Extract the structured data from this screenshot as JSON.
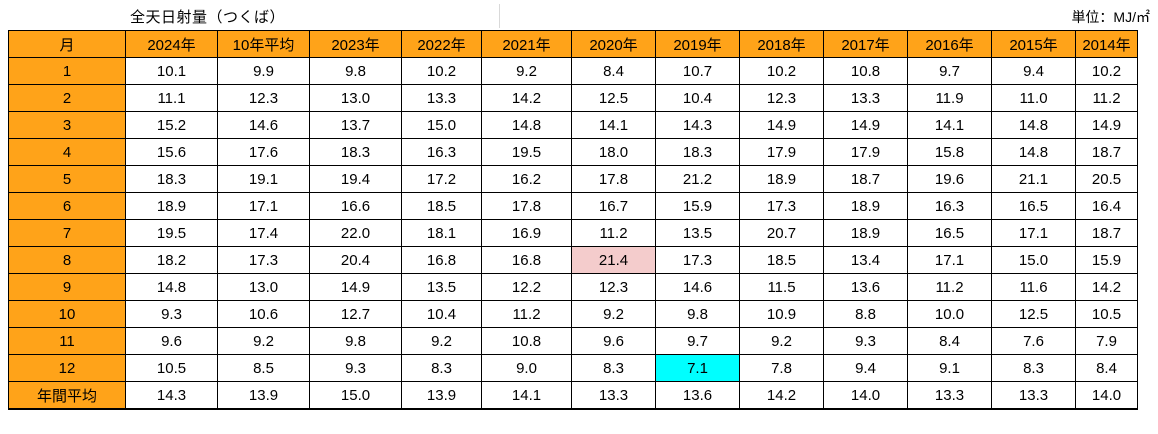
{
  "header": {
    "title": "全天日射量（つくば）",
    "unit": "単位：MJ/㎡"
  },
  "colors": {
    "header_bg": "#ffa319",
    "max_text": "#ff0000",
    "min_text": "#0000ff",
    "min_text_light": "#3355ff",
    "na_text": "#808080",
    "highlight_pink": "#f4cccc",
    "highlight_cyan": "#00ffff"
  },
  "table": {
    "columns": [
      "月",
      "2024年",
      "10年平均",
      "2023年",
      "2022年",
      "2021年",
      "2020年",
      "2019年",
      "2018年",
      "2017年",
      "2016年",
      "2015年",
      "2014年"
    ],
    "rows": [
      {
        "label": "1",
        "cells": [
          {
            "v": "10.1"
          },
          {
            "v": "9.9"
          },
          {
            "v": "9.8"
          },
          {
            "v": "10.2"
          },
          {
            "v": "9.2"
          },
          {
            "v": "8.4",
            "s": "min"
          },
          {
            "v": "10.7"
          },
          {
            "v": "10.2"
          },
          {
            "v": "10.8",
            "s": "max"
          },
          {
            "v": "9.7"
          },
          {
            "v": "9.4"
          },
          {
            "v": "10.2"
          }
        ]
      },
      {
        "label": "2",
        "cells": [
          {
            "v": "11.1"
          },
          {
            "v": "12.3"
          },
          {
            "v": "13.0"
          },
          {
            "v": "13.3"
          },
          {
            "v": "14.2",
            "s": "max"
          },
          {
            "v": "12.5"
          },
          {
            "v": "10.4",
            "s": "min"
          },
          {
            "v": "12.3"
          },
          {
            "v": "13.3"
          },
          {
            "v": "11.9"
          },
          {
            "v": "11.0"
          },
          {
            "v": "11.2"
          }
        ]
      },
      {
        "label": "3",
        "cells": [
          {
            "v": "15.2",
            "s": "max"
          },
          {
            "v": "14.6"
          },
          {
            "v": "13.7",
            "s": "min"
          },
          {
            "v": "15.0",
            "s": "max"
          },
          {
            "v": "14.8"
          },
          {
            "v": "14.1"
          },
          {
            "v": "14.3"
          },
          {
            "v": "14.9"
          },
          {
            "v": "14.9"
          },
          {
            "v": "14.1",
            "s": "minr"
          },
          {
            "v": "14.8"
          },
          {
            "v": "14.9"
          }
        ]
      },
      {
        "label": "4",
        "cells": [
          {
            "v": "15.6"
          },
          {
            "v": "17.6"
          },
          {
            "v": "18.3"
          },
          {
            "v": "16.3"
          },
          {
            "v": "19.5",
            "s": "max"
          },
          {
            "v": "18.0"
          },
          {
            "v": "18.3"
          },
          {
            "v": "17.9"
          },
          {
            "v": "17.9"
          },
          {
            "v": "15.8"
          },
          {
            "v": "14.8",
            "s": "min"
          },
          {
            "v": "18.7"
          }
        ]
      },
      {
        "label": "5",
        "cells": [
          {
            "v": "18.3"
          },
          {
            "v": "19.1"
          },
          {
            "v": "19.4"
          },
          {
            "v": "17.2"
          },
          {
            "v": "16.2",
            "s": "min"
          },
          {
            "v": "17.8"
          },
          {
            "v": "21.2",
            "s": "max"
          },
          {
            "v": "18.9"
          },
          {
            "v": "18.7"
          },
          {
            "v": "19.6"
          },
          {
            "v": "21.1"
          },
          {
            "v": "20.5"
          }
        ]
      },
      {
        "label": "6",
        "cells": [
          {
            "v": "18.9",
            "s": "max"
          },
          {
            "v": "17.1"
          },
          {
            "v": "16.6"
          },
          {
            "v": "18.5"
          },
          {
            "v": "17.8"
          },
          {
            "v": "16.7"
          },
          {
            "v": "15.9",
            "s": "min"
          },
          {
            "v": "17.3"
          },
          {
            "v": "18.9",
            "s": "max"
          },
          {
            "v": "16.3"
          },
          {
            "v": "16.5"
          },
          {
            "v": "16.4"
          }
        ]
      },
      {
        "label": "7",
        "cells": [
          {
            "v": "19.5"
          },
          {
            "v": "17.4"
          },
          {
            "v": "22.0",
            "s": "max"
          },
          {
            "v": "18.1"
          },
          {
            "v": "16.9"
          },
          {
            "v": "11.2",
            "s": "min"
          },
          {
            "v": "13.5"
          },
          {
            "v": "20.7"
          },
          {
            "v": "18.9"
          },
          {
            "v": "16.5"
          },
          {
            "v": "17.1"
          },
          {
            "v": "18.7"
          }
        ]
      },
      {
        "label": "8",
        "cells": [
          {
            "v": "18.2"
          },
          {
            "v": "17.3"
          },
          {
            "v": "20.4"
          },
          {
            "v": "16.8"
          },
          {
            "v": "16.8"
          },
          {
            "v": "21.4",
            "s": "max",
            "bg": "pink"
          },
          {
            "v": "17.3"
          },
          {
            "v": "18.5"
          },
          {
            "v": "13.4",
            "s": "min"
          },
          {
            "v": "17.1"
          },
          {
            "v": "15.0"
          },
          {
            "v": "15.9"
          }
        ]
      },
      {
        "label": "9",
        "cells": [
          {
            "v": "14.8"
          },
          {
            "v": "13.0"
          },
          {
            "v": "14.9",
            "s": "max"
          },
          {
            "v": "13.5"
          },
          {
            "v": "12.2"
          },
          {
            "v": "12.3"
          },
          {
            "v": "14.6"
          },
          {
            "v": "11.5"
          },
          {
            "v": "13.6"
          },
          {
            "v": "11.2",
            "s": "min"
          },
          {
            "v": "11.6"
          },
          {
            "v": "14.2"
          }
        ]
      },
      {
        "label": "10",
        "cells": [
          {
            "v": "9.3"
          },
          {
            "v": "10.6"
          },
          {
            "v": "12.7",
            "s": "max"
          },
          {
            "v": "10.4"
          },
          {
            "v": "11.2"
          },
          {
            "v": "9.2"
          },
          {
            "v": "9.8"
          },
          {
            "v": "10.9"
          },
          {
            "v": "8.8",
            "s": "min"
          },
          {
            "v": "10.0"
          },
          {
            "v": "12.5"
          },
          {
            "v": "10.5"
          }
        ]
      },
      {
        "label": "11",
        "cells": [
          {
            "v": "9.6"
          },
          {
            "v": "9.2"
          },
          {
            "v": "9.8"
          },
          {
            "v": "9.2"
          },
          {
            "v": "10.8",
            "s": "max"
          },
          {
            "v": "9.6"
          },
          {
            "v": "9.7",
            "s": "na"
          },
          {
            "v": "9.2"
          },
          {
            "v": "9.3"
          },
          {
            "v": "8.4"
          },
          {
            "v": "7.6",
            "s": "min"
          },
          {
            "v": "7.9"
          }
        ]
      },
      {
        "label": "12",
        "cells": [
          {
            "v": "10.5",
            "s": "max"
          },
          {
            "v": "8.5"
          },
          {
            "v": "9.3"
          },
          {
            "v": "8.3"
          },
          {
            "v": "9.0"
          },
          {
            "v": "8.3"
          },
          {
            "v": "7.1",
            "s": "min",
            "bg": "cyan"
          },
          {
            "v": "7.8"
          },
          {
            "v": "9.4",
            "s": "max"
          },
          {
            "v": "9.1"
          },
          {
            "v": "8.3"
          },
          {
            "v": "8.4"
          }
        ]
      },
      {
        "label": "年間平均",
        "cells": [
          {
            "v": "14.3"
          },
          {
            "v": "13.9"
          },
          {
            "v": "15.0",
            "s": "max"
          },
          {
            "v": "13.9"
          },
          {
            "v": "14.1"
          },
          {
            "v": "13.3",
            "s": "min"
          },
          {
            "v": "13.6"
          },
          {
            "v": "14.2"
          },
          {
            "v": "14.0"
          },
          {
            "v": "13.3",
            "s": "min"
          },
          {
            "v": "13.3",
            "s": "min"
          },
          {
            "v": "14.0"
          }
        ]
      }
    ]
  }
}
